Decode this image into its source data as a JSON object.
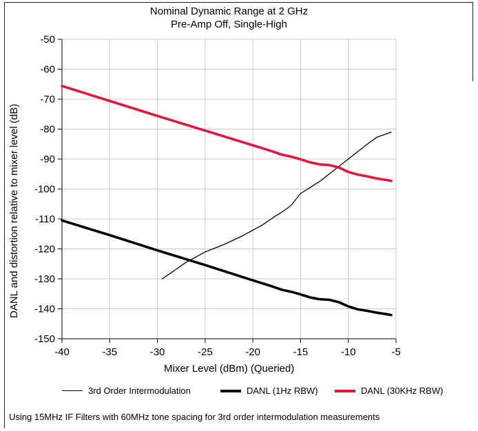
{
  "chart_data": {
    "type": "line",
    "title": "Nominal Dynamic Range at 2 GHz",
    "subtitle": "Pre-Amp Off, Single-High",
    "xlabel": "Mixer Level (dBm) (Queried)",
    "ylabel": "DANL and distortion relative to mixer level (dB)",
    "xlim": [
      -40,
      -5
    ],
    "ylim": [
      -150,
      -50
    ],
    "xticks": [
      -40,
      -35,
      -30,
      -25,
      -20,
      -15,
      -10,
      -5
    ],
    "xtick_labels": [
      "-40",
      "-35",
      "-30",
      "-25",
      "-20",
      "-15",
      "-10",
      "-5"
    ],
    "yticks": [
      -50,
      -60,
      -70,
      -80,
      -90,
      -100,
      -110,
      -120,
      -130,
      -140,
      -150
    ],
    "ytick_labels": [
      "-50",
      "-60",
      "-70",
      "-80",
      "-90",
      "-100",
      "-110",
      "-120",
      "-130",
      "-140",
      "-150"
    ],
    "grid": true,
    "legend_position": "bottom",
    "series": [
      {
        "name": "3rd Order Intermodulation",
        "color": "#000000",
        "style": "thin",
        "x": [
          -29.5,
          -27,
          -25,
          -23,
          -21,
          -19,
          -18,
          -17,
          -16.5,
          -16,
          -15,
          -14,
          -13,
          -12,
          -11,
          -10,
          -9,
          -8,
          -7,
          -5.5
        ],
        "y": [
          -130,
          -124.5,
          -121,
          -118.5,
          -115.5,
          -112,
          -109.8,
          -107.8,
          -106.7,
          -105.5,
          -101.5,
          -99.5,
          -97.5,
          -95,
          -92.5,
          -90,
          -87.5,
          -85,
          -82.7,
          -81
        ]
      },
      {
        "name": "DANL (1Hz RBW)",
        "color": "#000000",
        "style": "thick",
        "x": [
          -40,
          -35,
          -30,
          -25,
          -20,
          -18,
          -17,
          -16,
          -15,
          -14,
          -13,
          -12,
          -11,
          -10,
          -9,
          -8,
          -7,
          -6,
          -5.5
        ],
        "y": [
          -110.5,
          -115.4,
          -120.5,
          -125.4,
          -130.5,
          -132.5,
          -133.6,
          -134.3,
          -135.2,
          -136.2,
          -136.8,
          -137,
          -137.8,
          -139.2,
          -140.2,
          -140.7,
          -141.3,
          -141.8,
          -142.1
        ]
      },
      {
        "name": "DANL (30KHz RBW)",
        "color": "#e4173b",
        "style": "thick",
        "x": [
          -40,
          -35,
          -30,
          -25,
          -20,
          -18,
          -17,
          -16,
          -15,
          -14,
          -13,
          -12,
          -11,
          -10,
          -9,
          -8,
          -7,
          -6,
          -5.5
        ],
        "y": [
          -65.6,
          -70.6,
          -75.6,
          -80.5,
          -85.4,
          -87.4,
          -88.5,
          -89.2,
          -90.1,
          -91.1,
          -91.8,
          -92,
          -92.8,
          -94.3,
          -95.2,
          -95.8,
          -96.5,
          -97,
          -97.3
        ]
      }
    ],
    "footnote": "Using 15MHz IF Filters with 60MHz tone spacing for 3rd order intermodulation measurements"
  }
}
